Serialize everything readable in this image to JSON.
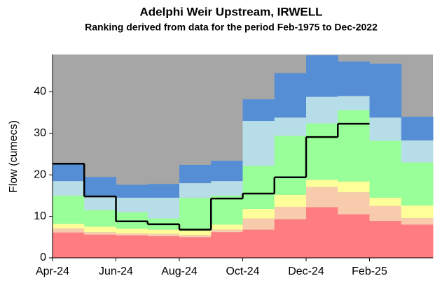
{
  "chart_data": {
    "type": "stepped_area",
    "title": "Adelphi Weir Upstream, IRWELL",
    "subtitle": "Ranking derived from data for the period Feb-1975 to Dec-2022",
    "y_label": "Flow (cumecs)",
    "categories": [
      "Apr-24",
      null,
      "Jun-24",
      null,
      "Aug-24",
      null,
      "Oct-24",
      null,
      "Dec-24",
      null,
      "Feb-25",
      null
    ],
    "ylim": [
      0,
      49
    ],
    "yticks": [
      0,
      10,
      20,
      30,
      40
    ],
    "background_color": "#a6a6a6",
    "series": [
      {
        "color": "#ff7c80",
        "values": [
          6.1,
          5.6,
          5.4,
          5.2,
          5.0,
          6.2,
          6.8,
          9.3,
          12.2,
          10.5,
          8.9,
          8.0
        ]
      },
      {
        "color": "#f8cbad",
        "values": [
          1.0,
          0.6,
          0.5,
          0.6,
          0.5,
          0.6,
          2.7,
          3.0,
          4.9,
          5.3,
          3.6,
          1.6
        ]
      },
      {
        "color": "#ffff99",
        "values": [
          1.1,
          1.3,
          1.1,
          1.0,
          1.0,
          1.2,
          2.3,
          2.9,
          1.7,
          2.6,
          2.0,
          3.0
        ]
      },
      {
        "color": "#99ff99",
        "values": [
          6.8,
          4.0,
          4.0,
          2.7,
          8.0,
          7.0,
          10.4,
          14.2,
          13.6,
          17.2,
          13.7,
          10.4
        ]
      },
      {
        "color": "#b7dee8",
        "values": [
          3.5,
          3.4,
          3.5,
          5.0,
          3.5,
          3.5,
          10.8,
          4.4,
          6.4,
          3.4,
          5.6,
          5.3
        ]
      },
      {
        "color": "#558ed5",
        "values": [
          4.2,
          4.6,
          3.1,
          3.3,
          4.4,
          4.9,
          5.2,
          10.7,
          10.0,
          8.3,
          13.0,
          5.7
        ]
      }
    ],
    "line": {
      "color": "#000000",
      "values": [
        22.7,
        14.8,
        8.8,
        8.1,
        6.8,
        14.3,
        15.5,
        19.4,
        29.1,
        32.3,
        null,
        null
      ]
    }
  }
}
